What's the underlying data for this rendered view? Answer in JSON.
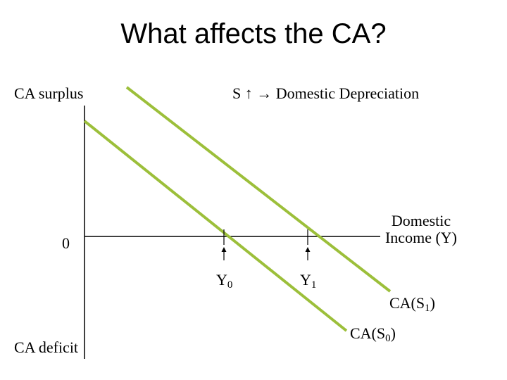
{
  "slide": {
    "title": "What affects the CA?",
    "labels": {
      "y_top": "CA surplus",
      "y_bottom": "CA deficit",
      "origin": "0",
      "annotation": "S ↑ → Domestic Depreciation",
      "x_axis_line1": "Domestic",
      "x_axis_line2": "Income (Y)"
    },
    "markers": [
      {
        "label": "Y",
        "subscript": "0"
      },
      {
        "label": "Y",
        "subscript": "1"
      }
    ],
    "curves": [
      {
        "label": "CA(S",
        "subscript": "0",
        "suffix": ")"
      },
      {
        "label": "CA(S",
        "subscript": "1",
        "suffix": ")"
      }
    ],
    "colors": {
      "curve": "#9cbf3a",
      "axis": "#000000"
    }
  }
}
